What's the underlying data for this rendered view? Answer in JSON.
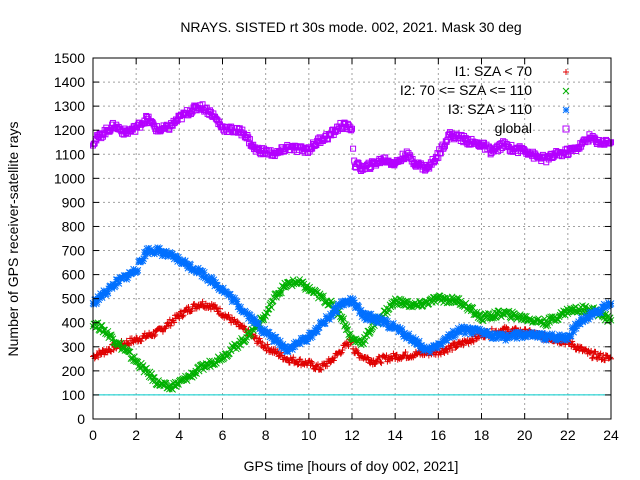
{
  "chart_data": {
    "type": "scatter",
    "title": "NRAYS. SISTED rt 30s mode. 002, 2021. Mask 30 deg",
    "xlabel": "GPS time [hours of doy 002, 2021]",
    "ylabel": "Number of GPS receiver-satellite rays",
    "xlim": [
      0,
      24
    ],
    "ylim": [
      0,
      1500
    ],
    "xticks": [
      0,
      2,
      4,
      6,
      8,
      10,
      12,
      14,
      16,
      18,
      20,
      22,
      24
    ],
    "yticks": [
      0,
      100,
      200,
      300,
      400,
      500,
      600,
      700,
      800,
      900,
      1000,
      1100,
      1200,
      1300,
      1400,
      1500
    ],
    "grid": true,
    "legend_position": "top-right",
    "reference_line": {
      "y": 100,
      "color": "#00cccc"
    },
    "series": [
      {
        "name": "I1: SZA < 70",
        "marker": "+",
        "color": "#e00000",
        "x": [
          0,
          1,
          2,
          3,
          4,
          4.5,
          5,
          5.5,
          6,
          7,
          8,
          9,
          10,
          10.5,
          11,
          12,
          12.1,
          12.5,
          13,
          14,
          15,
          16,
          17,
          18,
          19,
          20,
          21,
          22,
          23,
          24
        ],
        "y": [
          260,
          300,
          330,
          360,
          430,
          460,
          480,
          470,
          440,
          370,
          300,
          250,
          230,
          210,
          240,
          330,
          280,
          260,
          240,
          260,
          270,
          280,
          310,
          350,
          370,
          360,
          340,
          320,
          270,
          250
        ]
      },
      {
        "name": "I2: 70 <= SZA <= 110",
        "marker": "x",
        "color": "#00b000",
        "x": [
          0,
          0.5,
          1,
          2,
          3,
          3.5,
          4,
          5,
          6,
          7,
          8,
          8.5,
          9,
          9.5,
          10,
          11,
          11.5,
          12,
          12.5,
          13,
          14,
          15,
          16,
          17,
          18,
          19,
          20,
          21,
          22,
          23,
          24
        ],
        "y": [
          400,
          370,
          330,
          240,
          150,
          130,
          150,
          210,
          260,
          330,
          430,
          520,
          560,
          570,
          540,
          480,
          430,
          330,
          320,
          390,
          490,
          470,
          500,
          490,
          420,
          440,
          420,
          400,
          450,
          460,
          410
        ]
      },
      {
        "name": "I3: SZA > 110",
        "marker": "*",
        "color": "#0070ff",
        "x": [
          0,
          0.5,
          1,
          2,
          2.5,
          3,
          4,
          5,
          6,
          7,
          8,
          9,
          10,
          11,
          11.5,
          12,
          12.5,
          13,
          14,
          15,
          15.5,
          16,
          17,
          18,
          19,
          20,
          21,
          22,
          22.5,
          23,
          24
        ],
        "y": [
          480,
          520,
          560,
          620,
          700,
          700,
          660,
          610,
          540,
          450,
          360,
          290,
          340,
          430,
          480,
          490,
          430,
          420,
          380,
          320,
          280,
          310,
          370,
          360,
          340,
          350,
          340,
          340,
          400,
          430,
          480
        ]
      },
      {
        "name": "global",
        "marker": "square",
        "color": "#b400ff",
        "x": [
          0,
          0.5,
          1,
          1.5,
          2,
          2.5,
          3,
          3.5,
          4,
          4.5,
          5,
          5.5,
          6,
          7,
          7.5,
          8,
          8.5,
          9,
          9.5,
          10,
          10.5,
          11,
          11.5,
          12,
          12.1,
          12.5,
          13,
          13.5,
          14,
          14.5,
          15,
          15.5,
          16,
          16.5,
          17,
          17.5,
          18,
          18.5,
          19,
          19.5,
          20,
          20.5,
          21,
          21.5,
          22,
          22.5,
          23,
          23.5,
          24
        ],
        "y": [
          1150,
          1190,
          1220,
          1190,
          1210,
          1250,
          1200,
          1210,
          1250,
          1280,
          1300,
          1270,
          1210,
          1190,
          1120,
          1110,
          1100,
          1130,
          1120,
          1120,
          1160,
          1180,
          1220,
          1210,
          1060,
          1040,
          1060,
          1080,
          1060,
          1100,
          1060,
          1040,
          1100,
          1180,
          1170,
          1150,
          1140,
          1110,
          1140,
          1120,
          1120,
          1090,
          1080,
          1100,
          1110,
          1130,
          1170,
          1150,
          1150
        ]
      }
    ]
  }
}
